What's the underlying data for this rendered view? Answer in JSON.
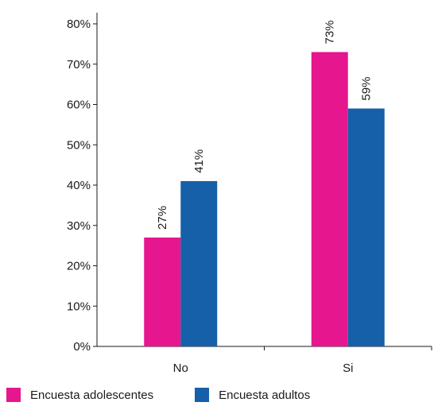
{
  "chart_data": {
    "type": "bar",
    "categories": [
      "No",
      "Si"
    ],
    "series": [
      {
        "name": "Encuesta adolescentes",
        "values": [
          27,
          73
        ],
        "labels": [
          "27%",
          "73%"
        ],
        "color": "#e6168f"
      },
      {
        "name": "Encuesta adultos",
        "values": [
          41,
          59
        ],
        "labels": [
          "41%",
          "59%"
        ],
        "color": "#1560a8"
      }
    ],
    "yticks": [
      "0%",
      "10%",
      "20%",
      "30%",
      "40%",
      "50%",
      "60%",
      "70%",
      "80%"
    ],
    "ylim": [
      0,
      80
    ],
    "ytick_step": 10,
    "grid": false,
    "legend_position": "bottom-left"
  }
}
